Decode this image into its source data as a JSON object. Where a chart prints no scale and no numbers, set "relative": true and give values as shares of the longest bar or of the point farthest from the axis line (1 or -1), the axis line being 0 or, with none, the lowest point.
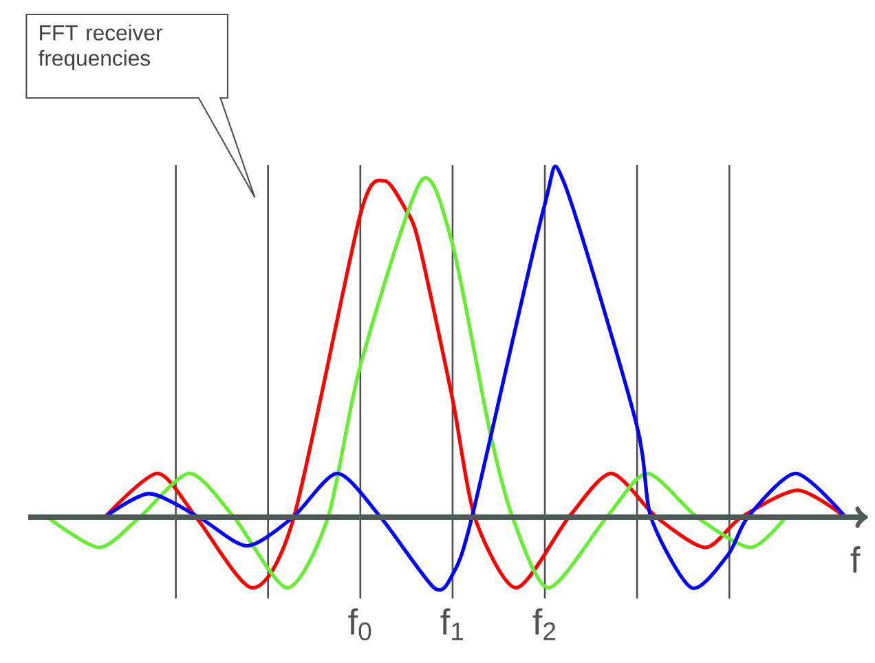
{
  "chart_data": {
    "type": "line",
    "relative": true,
    "xlabel": "f",
    "xlim": [
      -3.6,
      5.5
    ],
    "xticks": [
      {
        "value": 0,
        "label": "f$_{0}$"
      },
      {
        "value": 1,
        "label": "f$_{1}$"
      },
      {
        "value": 2,
        "label": "f$_{2}$"
      }
    ],
    "tick_labels": "x",
    "marker": "none",
    "line_style": "solid",
    "annotations": [
      "FFT receiver frequencies"
    ],
    "ref_lines": [
      {
        "axis": "x",
        "value": -2,
        "color": "#505050"
      },
      {
        "axis": "x",
        "value": -1,
        "color": "#505050"
      },
      {
        "axis": "x",
        "value": 0,
        "color": "#505050"
      },
      {
        "axis": "x",
        "value": 1,
        "color": "#505050"
      },
      {
        "axis": "x",
        "value": 2,
        "color": "#505050"
      },
      {
        "axis": "x",
        "value": 3,
        "color": "#505050"
      },
      {
        "axis": "x",
        "value": 4,
        "color": "#505050"
      }
    ],
    "series": [
      {
        "color": "#ff0000",
        "x": [
          -2.77,
          -2.2,
          -1.78,
          -1.17,
          -0.72,
          0,
          0.26,
          0.48,
          0.63,
          1.0,
          1.24,
          1.69,
          2.26,
          2.72,
          3.21,
          3.74,
          4.13,
          4.74,
          5.26
        ],
        "values": [
          0,
          0.13,
          0,
          -0.21,
          0,
          0.9,
          1,
          0.92,
          0.82,
          0.35,
          0,
          -0.21,
          0,
          0.13,
          0,
          -0.09,
          0,
          0.08,
          0
        ]
      },
      {
        "color": "#66ee33",
        "x": [
          -3.39,
          -2.83,
          -2.39,
          -1.85,
          -1.37,
          -0.79,
          -0.35,
          0,
          0.66,
          1.0,
          1.4,
          1.65,
          2.04,
          2.67,
          3.11,
          3.65,
          4.23,
          4.61
        ],
        "values": [
          0,
          -0.09,
          0,
          0.13,
          0,
          -0.21,
          0,
          0.45,
          1,
          0.81,
          0.26,
          0,
          -0.21,
          0,
          0.13,
          0,
          -0.09,
          0
        ]
      },
      {
        "color": "#0000ff",
        "x": [
          -2.77,
          -2.29,
          -1.75,
          -1.23,
          -0.73,
          -0.25,
          0.22,
          0.8,
          1.0,
          1.21,
          1.99,
          2.2,
          2.99,
          3.15,
          3.59,
          3.99,
          4.2,
          4.72,
          5.26
        ],
        "values": [
          0,
          0.07,
          0,
          -0.085,
          0,
          0.13,
          0,
          -0.21,
          -0.17,
          0,
          0.92,
          1,
          0.28,
          0,
          -0.21,
          -0.11,
          0,
          0.13,
          0
        ]
      }
    ]
  }
}
